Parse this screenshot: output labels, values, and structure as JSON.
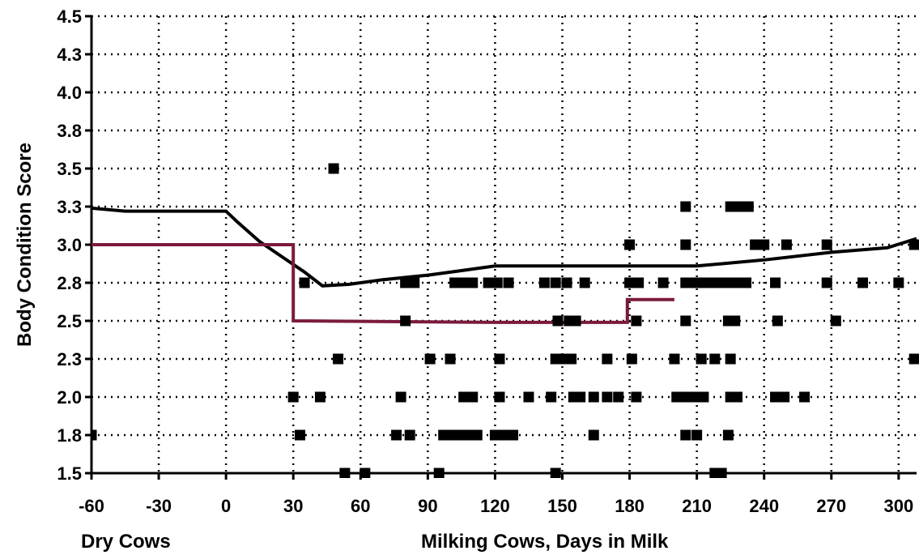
{
  "chart_data": {
    "type": "scatter",
    "title": "",
    "xlabel_left": "Dry Cows",
    "xlabel_right": "Milking Cows,  Days in Milk",
    "ylabel": "Body Condition Score",
    "xlim": [
      -60,
      308
    ],
    "ylim": [
      1.5,
      4.5
    ],
    "grid": true,
    "x_ticks": [
      -60,
      -30,
      0,
      30,
      60,
      90,
      120,
      150,
      180,
      210,
      240,
      270,
      300
    ],
    "x_tick_labels": [
      "-60",
      "-30",
      "0",
      "30",
      "60",
      "90",
      "120",
      "150",
      "180",
      "210",
      "240",
      "270",
      "300"
    ],
    "y_ticks": [
      1.5,
      1.75,
      2.0,
      2.25,
      2.5,
      2.75,
      3.0,
      3.25,
      3.5,
      3.75,
      4.0,
      4.25,
      4.5
    ],
    "y_tick_labels": [
      "1.5",
      "1.8",
      "2.0",
      "2.3",
      "2.5",
      "2.8",
      "3.0",
      "3.3",
      "3.5",
      "3.8",
      "4.0",
      "4.3",
      "4.5"
    ],
    "series": [
      {
        "kind": "line",
        "color": "#000000",
        "points": [
          [
            -60,
            3.24
          ],
          [
            -45,
            3.22
          ],
          [
            -20,
            3.22
          ],
          [
            0,
            3.22
          ],
          [
            5,
            3.15
          ],
          [
            15,
            3.02
          ],
          [
            25,
            2.92
          ],
          [
            35,
            2.82
          ],
          [
            43,
            2.73
          ],
          [
            55,
            2.74
          ],
          [
            70,
            2.77
          ],
          [
            90,
            2.8
          ],
          [
            105,
            2.83
          ],
          [
            120,
            2.86
          ],
          [
            150,
            2.86
          ],
          [
            180,
            2.86
          ],
          [
            210,
            2.86
          ],
          [
            240,
            2.9
          ],
          [
            270,
            2.95
          ],
          [
            295,
            2.98
          ],
          [
            308,
            3.04
          ]
        ]
      },
      {
        "kind": "line",
        "color": "#7B1A3E",
        "points": [
          [
            -60,
            3.0
          ],
          [
            30,
            3.0
          ],
          [
            30,
            2.5
          ],
          [
            120,
            2.49
          ],
          [
            179,
            2.49
          ],
          [
            179,
            2.64
          ],
          [
            200,
            2.64
          ]
        ]
      },
      {
        "kind": "scatter",
        "color": "#000000",
        "points": [
          [
            -60,
            1.75
          ],
          [
            48,
            3.5
          ],
          [
            35,
            2.75
          ],
          [
            33,
            1.75
          ],
          [
            30,
            2.0
          ],
          [
            42,
            2.0
          ],
          [
            50,
            2.25
          ],
          [
            53,
            1.5
          ],
          [
            62,
            1.5
          ],
          [
            80,
            2.75
          ],
          [
            84,
            2.75
          ],
          [
            80,
            2.5
          ],
          [
            78,
            2.0
          ],
          [
            76,
            1.75
          ],
          [
            82,
            1.75
          ],
          [
            91,
            2.25
          ],
          [
            95,
            1.5
          ],
          [
            97,
            1.75
          ],
          [
            102,
            2.75
          ],
          [
            106,
            2.75
          ],
          [
            110,
            2.75
          ],
          [
            100,
            1.75
          ],
          [
            104,
            1.75
          ],
          [
            108,
            1.75
          ],
          [
            112,
            1.75
          ],
          [
            106,
            2.0
          ],
          [
            110,
            2.0
          ],
          [
            100,
            2.25
          ],
          [
            117,
            2.75
          ],
          [
            121,
            2.75
          ],
          [
            126,
            2.75
          ],
          [
            122,
            2.25
          ],
          [
            120,
            1.75
          ],
          [
            124,
            1.75
          ],
          [
            128,
            1.75
          ],
          [
            122,
            2.0
          ],
          [
            135,
            2.0
          ],
          [
            142,
            2.75
          ],
          [
            147,
            2.75
          ],
          [
            152,
            2.75
          ],
          [
            160,
            2.75
          ],
          [
            148,
            2.5
          ],
          [
            153,
            2.5
          ],
          [
            156,
            2.5
          ],
          [
            147,
            2.25
          ],
          [
            150,
            2.25
          ],
          [
            154,
            2.25
          ],
          [
            145,
            2.0
          ],
          [
            155,
            2.0
          ],
          [
            147,
            1.5
          ],
          [
            158,
            2.0
          ],
          [
            164,
            2.0
          ],
          [
            170,
            2.0
          ],
          [
            170,
            2.25
          ],
          [
            164,
            1.75
          ],
          [
            175,
            2.0
          ],
          [
            180,
            2.75
          ],
          [
            184,
            2.75
          ],
          [
            183,
            2.5
          ],
          [
            180,
            3.0
          ],
          [
            181,
            2.25
          ],
          [
            183,
            2.0
          ],
          [
            195,
            2.75
          ],
          [
            205,
            2.75
          ],
          [
            205,
            3.25
          ],
          [
            205,
            3.0
          ],
          [
            205,
            2.5
          ],
          [
            200,
            2.25
          ],
          [
            201,
            2.0
          ],
          [
            208,
            2.75
          ],
          [
            212,
            2.75
          ],
          [
            216,
            2.75
          ],
          [
            220,
            2.75
          ],
          [
            224,
            2.75
          ],
          [
            228,
            2.75
          ],
          [
            232,
            2.75
          ],
          [
            205,
            2.0
          ],
          [
            209,
            2.0
          ],
          [
            213,
            2.0
          ],
          [
            205,
            1.75
          ],
          [
            210,
            1.75
          ],
          [
            212,
            2.25
          ],
          [
            218,
            2.25
          ],
          [
            225,
            3.25
          ],
          [
            229,
            3.25
          ],
          [
            233,
            3.25
          ],
          [
            236,
            3.0
          ],
          [
            240,
            3.0
          ],
          [
            250,
            3.0
          ],
          [
            224,
            2.5
          ],
          [
            227,
            2.5
          ],
          [
            225,
            2.25
          ],
          [
            225,
            2.0
          ],
          [
            228,
            2.0
          ],
          [
            224,
            1.75
          ],
          [
            218,
            1.5
          ],
          [
            221,
            1.5
          ],
          [
            245,
            2.75
          ],
          [
            246,
            2.5
          ],
          [
            245,
            2.0
          ],
          [
            249,
            2.0
          ],
          [
            258,
            2.0
          ],
          [
            268,
            3.0
          ],
          [
            268,
            2.75
          ],
          [
            272,
            2.5
          ],
          [
            284,
            2.75
          ],
          [
            300,
            2.75
          ],
          [
            307,
            3.0
          ],
          [
            307,
            2.25
          ]
        ]
      }
    ]
  }
}
